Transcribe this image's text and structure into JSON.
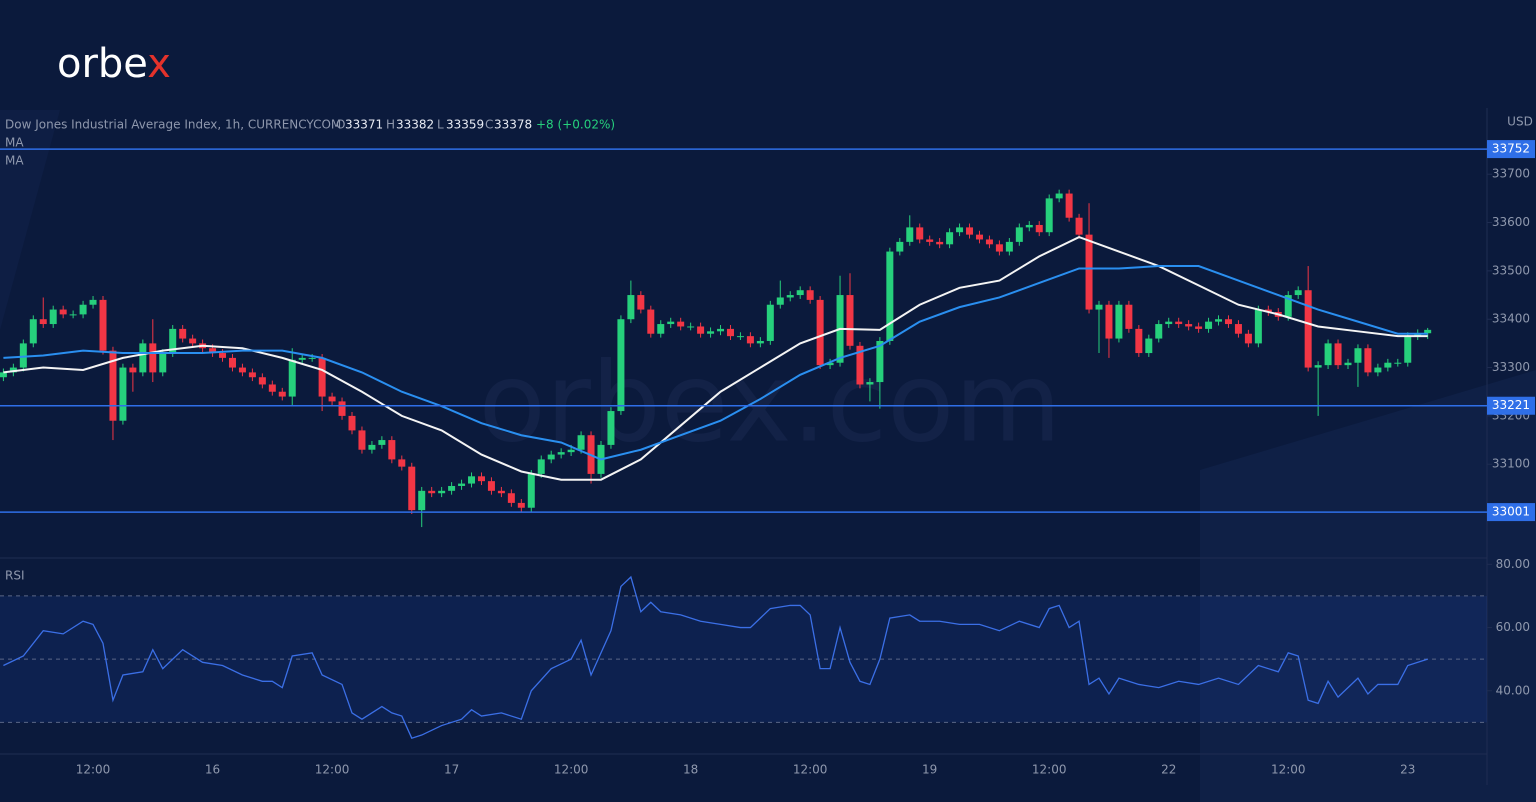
{
  "logo": [
    "orbe",
    "x"
  ],
  "watermark": "orbex.com",
  "chart_data": {
    "type": "candlestick",
    "title": "Dow Jones Industrial Average Index, 1h, CURRENCYCOM",
    "ohlc_labels": [
      "O",
      "H",
      "L",
      "C"
    ],
    "change": "+8 (+0.02%)",
    "unit": "USD",
    "categories": [
      null,
      null,
      null,
      null,
      null,
      null,
      null,
      null,
      null,
      "12:00",
      null,
      null,
      null,
      null,
      null,
      null,
      null,
      null,
      null,
      null,
      null,
      "16",
      null,
      null,
      null,
      null,
      null,
      null,
      null,
      null,
      null,
      null,
      null,
      "12:00",
      null,
      null,
      null,
      null,
      null,
      null,
      null,
      null,
      null,
      null,
      null,
      "17",
      null,
      null,
      null,
      null,
      null,
      null,
      null,
      null,
      null,
      null,
      null,
      "12:00",
      null,
      null,
      null,
      null,
      null,
      null,
      null,
      null,
      null,
      null,
      null,
      "18",
      null,
      null,
      null,
      null,
      null,
      null,
      null,
      null,
      null,
      null,
      null,
      "12:00",
      null,
      null,
      null,
      null,
      null,
      null,
      null,
      null,
      null,
      null,
      null,
      "19",
      null,
      null,
      null,
      null,
      null,
      null,
      null,
      null,
      null,
      null,
      null,
      "12:00",
      null,
      null,
      null,
      null,
      null,
      null,
      null,
      null,
      null,
      null,
      null,
      "22",
      null,
      null,
      null,
      null,
      null,
      null,
      null,
      null,
      null,
      null,
      null,
      "12:00",
      null,
      null,
      null,
      null,
      null,
      null,
      null,
      null,
      null,
      null,
      null,
      "23",
      null,
      null
    ],
    "open": [
      33280,
      33290,
      33300,
      33350,
      33400,
      33390,
      33420,
      33410,
      33410,
      33430,
      33440,
      33335,
      33190,
      33300,
      33290,
      33350,
      33290,
      33330,
      33380,
      33360,
      33350,
      33340,
      33330,
      33320,
      33300,
      33290,
      33280,
      33265,
      33250,
      33240,
      33316,
      33320,
      33320,
      33240,
      33230,
      33200,
      33170,
      33130,
      33140,
      33150,
      33110,
      33095,
      33005,
      33045,
      33040,
      33045,
      33055,
      33060,
      33075,
      33065,
      33045,
      33040,
      33020,
      33010,
      33080,
      33110,
      33120,
      33125,
      33130,
      33160,
      33080,
      33140,
      33210,
      33400,
      33450,
      33420,
      33370,
      33390,
      33395,
      33385,
      33385,
      33370,
      33375,
      33380,
      33365,
      33365,
      33350,
      33355,
      33430,
      33445,
      33450,
      33460,
      33440,
      33305,
      33310,
      33450,
      33345,
      33265,
      33270,
      33355,
      33540,
      33560,
      33590,
      33565,
      33560,
      33555,
      33580,
      33590,
      33575,
      33565,
      33555,
      33540,
      33560,
      33590,
      33595,
      33580,
      33650,
      33660,
      33610,
      33575,
      33420,
      33430,
      33360,
      33430,
      33380,
      33330,
      33360,
      33390,
      33395,
      33390,
      33385,
      33380,
      33395,
      33400,
      33390,
      33370,
      33350,
      33420,
      33415,
      33405,
      33450,
      33460,
      33300,
      33305,
      33350,
      33305,
      33310,
      33340,
      33290,
      33300,
      33310,
      33310,
      33365,
      33371
    ],
    "high": [
      33298,
      33308,
      33358,
      33408,
      33445,
      33428,
      33428,
      33418,
      33438,
      33448,
      33448,
      33343,
      33308,
      33308,
      33358,
      33400,
      33338,
      33388,
      33388,
      33368,
      33358,
      33348,
      33338,
      33328,
      33308,
      33298,
      33288,
      33273,
      33258,
      33340,
      33328,
      33328,
      33328,
      33248,
      33238,
      33208,
      33178,
      33148,
      33158,
      33158,
      33118,
      33103,
      33053,
      33053,
      33053,
      33063,
      33068,
      33083,
      33083,
      33073,
      33053,
      33048,
      33028,
      33088,
      33118,
      33128,
      33133,
      33140,
      33168,
      33168,
      33148,
      33218,
      33408,
      33480,
      33458,
      33428,
      33398,
      33403,
      33403,
      33393,
      33393,
      33383,
      33388,
      33388,
      33373,
      33373,
      33363,
      33438,
      33480,
      33458,
      33468,
      33468,
      33448,
      33318,
      33490,
      33495,
      33353,
      33278,
      33363,
      33548,
      33568,
      33615,
      33598,
      33573,
      33568,
      33588,
      33598,
      33598,
      33583,
      33573,
      33563,
      33568,
      33598,
      33603,
      33603,
      33658,
      33668,
      33668,
      33618,
      33640,
      33438,
      33438,
      33438,
      33438,
      33388,
      33368,
      33398,
      33403,
      33403,
      33398,
      33393,
      33403,
      33408,
      33408,
      33398,
      33378,
      33428,
      33428,
      33423,
      33458,
      33468,
      33510,
      33313,
      33358,
      33358,
      33318,
      33348,
      33348,
      33308,
      33318,
      33318,
      33373,
      33379,
      33382
    ],
    "low": [
      33272,
      33282,
      33292,
      33342,
      33382,
      33382,
      33402,
      33402,
      33402,
      33422,
      33327,
      33150,
      33182,
      33250,
      33282,
      33270,
      33282,
      33322,
      33352,
      33342,
      33332,
      33322,
      33312,
      33292,
      33282,
      33272,
      33257,
      33242,
      33232,
      33220,
      33308,
      33312,
      33210,
      33222,
      33192,
      33162,
      33122,
      33122,
      33132,
      33102,
      33087,
      32997,
      32970,
      33032,
      33032,
      33037,
      33047,
      33052,
      33057,
      33037,
      33032,
      33012,
      33000,
      33002,
      33072,
      33102,
      33112,
      33117,
      33122,
      33060,
      33072,
      33132,
      33202,
      33392,
      33412,
      33362,
      33362,
      33382,
      33377,
      33377,
      33362,
      33362,
      33367,
      33357,
      33357,
      33342,
      33342,
      33347,
      33422,
      33437,
      33442,
      33432,
      33297,
      33297,
      33302,
      33337,
      33257,
      33230,
      33215,
      33347,
      33532,
      33552,
      33557,
      33552,
      33547,
      33547,
      33572,
      33567,
      33557,
      33547,
      33532,
      33532,
      33552,
      33582,
      33572,
      33572,
      33642,
      33602,
      33567,
      33412,
      33330,
      33320,
      33352,
      33372,
      33322,
      33322,
      33352,
      33382,
      33382,
      33377,
      33372,
      33372,
      33387,
      33382,
      33362,
      33342,
      33342,
      33407,
      33397,
      33397,
      33442,
      33292,
      33200,
      33297,
      33297,
      33297,
      33260,
      33282,
      33282,
      33292,
      33302,
      33302,
      33357,
      33359
    ],
    "close": [
      33290,
      33300,
      33350,
      33400,
      33390,
      33420,
      33410,
      33410,
      33430,
      33440,
      33335,
      33190,
      33300,
      33290,
      33350,
      33290,
      33330,
      33380,
      33360,
      33350,
      33340,
      33330,
      33320,
      33300,
      33290,
      33280,
      33265,
      33250,
      33240,
      33316,
      33320,
      33320,
      33240,
      33230,
      33200,
      33170,
      33130,
      33140,
      33150,
      33110,
      33095,
      33005,
      33045,
      33040,
      33045,
      33055,
      33060,
      33075,
      33065,
      33045,
      33040,
      33020,
      33010,
      33080,
      33110,
      33120,
      33125,
      33130,
      33160,
      33080,
      33140,
      33210,
      33400,
      33450,
      33420,
      33370,
      33390,
      33395,
      33385,
      33385,
      33370,
      33375,
      33380,
      33365,
      33365,
      33350,
      33355,
      33430,
      33445,
      33450,
      33460,
      33440,
      33305,
      33310,
      33450,
      33345,
      33265,
      33270,
      33355,
      33540,
      33560,
      33590,
      33565,
      33560,
      33555,
      33580,
      33590,
      33575,
      33565,
      33555,
      33540,
      33560,
      33590,
      33595,
      33580,
      33650,
      33660,
      33610,
      33575,
      33420,
      33430,
      33360,
      33430,
      33380,
      33330,
      33360,
      33390,
      33395,
      33390,
      33385,
      33380,
      33395,
      33400,
      33390,
      33370,
      33350,
      33420,
      33415,
      33405,
      33450,
      33460,
      33300,
      33305,
      33350,
      33305,
      33310,
      33340,
      33290,
      33300,
      33310,
      33310,
      33365,
      33371,
      33378
    ],
    "up_color": "#26d07c",
    "down_color": "#f23645",
    "ylim": [
      32906,
      33837
    ],
    "yticks": [
      33100,
      33200,
      33300,
      33400,
      33500,
      33600,
      33700
    ],
    "levels": [
      33752,
      33221,
      33001
    ],
    "level_color": "#2f6fe8",
    "overlays": [
      {
        "name": "MA",
        "color": "#f4f4f4",
        "x": [
          0,
          4,
          8,
          12,
          16,
          20,
          24,
          28,
          32,
          36,
          40,
          44,
          48,
          52,
          56,
          60,
          64,
          68,
          72,
          76,
          80,
          84,
          88,
          92,
          96,
          100,
          104,
          108,
          112,
          116,
          120,
          124,
          128,
          132,
          136,
          140,
          143
        ],
        "values": [
          33290,
          33300,
          33295,
          33320,
          33335,
          33345,
          33340,
          33320,
          33295,
          33250,
          33200,
          33170,
          33120,
          33085,
          33068,
          33068,
          33110,
          33180,
          33250,
          33300,
          33350,
          33380,
          33378,
          33430,
          33465,
          33480,
          33530,
          33570,
          33540,
          33510,
          33470,
          33430,
          33410,
          33385,
          33375,
          33365,
          33365
        ]
      },
      {
        "name": "MA",
        "color": "#2a8ff0",
        "x": [
          0,
          4,
          8,
          12,
          16,
          20,
          24,
          28,
          32,
          36,
          40,
          44,
          48,
          52,
          56,
          60,
          64,
          68,
          72,
          76,
          80,
          84,
          88,
          92,
          96,
          100,
          104,
          108,
          112,
          116,
          120,
          124,
          128,
          132,
          136,
          140,
          143
        ],
        "values": [
          33320,
          33325,
          33335,
          33330,
          33330,
          33330,
          33335,
          33335,
          33320,
          33290,
          33250,
          33220,
          33185,
          33160,
          33145,
          33110,
          33130,
          33160,
          33190,
          33235,
          33285,
          33320,
          33345,
          33395,
          33425,
          33445,
          33475,
          33505,
          33505,
          33510,
          33510,
          33480,
          33450,
          33420,
          33395,
          33370,
          33370
        ]
      }
    ],
    "rsi": {
      "title": "RSI",
      "color": "#3b6fe6",
      "x": [
        0,
        2,
        4,
        6,
        8,
        9,
        10,
        11,
        12,
        14,
        15,
        16,
        18,
        20,
        22,
        24,
        26,
        27,
        28,
        29,
        31,
        32,
        34,
        35,
        36,
        38,
        39,
        40,
        41,
        42,
        44,
        46,
        47,
        48,
        50,
        52,
        53,
        55,
        57,
        58,
        59,
        61,
        62,
        63,
        64,
        65,
        66,
        68,
        70,
        72,
        74,
        75,
        77,
        79,
        80,
        81,
        82,
        83,
        84,
        85,
        86,
        87,
        88,
        89,
        91,
        92,
        94,
        96,
        98,
        100,
        102,
        104,
        105,
        106,
        107,
        108,
        109,
        110,
        111,
        112,
        114,
        116,
        118,
        120,
        122,
        124,
        126,
        128,
        129,
        130,
        131,
        132,
        133,
        134,
        136,
        137,
        138,
        140,
        141,
        143
      ],
      "values": [
        48,
        51,
        59,
        58,
        62,
        61,
        55,
        37,
        45,
        46,
        53,
        47,
        53,
        49,
        48,
        45,
        43,
        43,
        41,
        51,
        52,
        45,
        42,
        33,
        31,
        35,
        33,
        32,
        25,
        26,
        29,
        31,
        34,
        32,
        33,
        31,
        40,
        47,
        50,
        56,
        45,
        59,
        73,
        76,
        65,
        68,
        65,
        64,
        62,
        61,
        60,
        60,
        66,
        67,
        67,
        64,
        47,
        47,
        60,
        49,
        43,
        42,
        50,
        63,
        64,
        62,
        62,
        61,
        61,
        59,
        62,
        60,
        66,
        67,
        60,
        62,
        42,
        44,
        39,
        44,
        42,
        41,
        43,
        42,
        44,
        42,
        48,
        46,
        52,
        51,
        37,
        36,
        43,
        38,
        44,
        39,
        42,
        42,
        48,
        50
      ],
      "ylim": [
        20,
        82
      ],
      "yticks": [
        {
          "value": 80,
          "label": "80.00"
        },
        {
          "value": 60,
          "label": "60.00"
        },
        {
          "value": 40,
          "label": "40.00"
        }
      ],
      "bands": [
        70,
        50,
        30
      ]
    }
  }
}
